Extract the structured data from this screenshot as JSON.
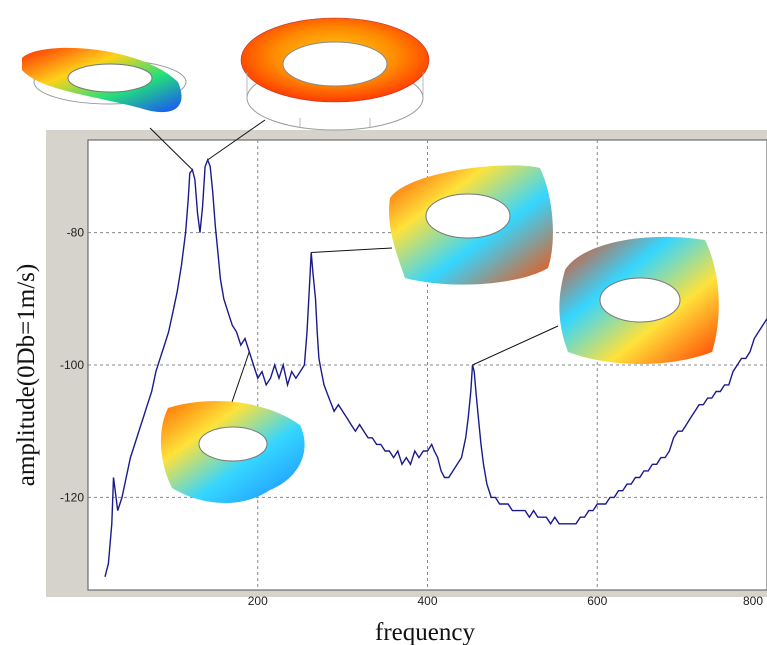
{
  "chart_data": {
    "type": "line",
    "title": "",
    "xlabel": "frequency",
    "ylabel": "amplitude(0Db=1m/s)",
    "xlim": [
      0,
      800
    ],
    "ylim": [
      -134,
      -66
    ],
    "grid": true,
    "x_ticks": [
      "200",
      "400",
      "600",
      "800"
    ],
    "y_ticks": [
      "-80",
      "-100",
      "-120"
    ],
    "x_tick_values": [
      200,
      400,
      600,
      800
    ],
    "y_tick_values": [
      -80,
      -100,
      -120
    ],
    "series": [
      {
        "name": "",
        "color": "#1a1a8c",
        "points": [
          [
            20,
            -132
          ],
          [
            24,
            -130
          ],
          [
            28,
            -124
          ],
          [
            30,
            -117
          ],
          [
            32,
            -119
          ],
          [
            35,
            -122
          ],
          [
            40,
            -120
          ],
          [
            45,
            -117
          ],
          [
            50,
            -114
          ],
          [
            55,
            -112
          ],
          [
            60,
            -110
          ],
          [
            65,
            -108
          ],
          [
            70,
            -106
          ],
          [
            75,
            -104
          ],
          [
            80,
            -101
          ],
          [
            85,
            -99
          ],
          [
            90,
            -97
          ],
          [
            95,
            -95
          ],
          [
            100,
            -92
          ],
          [
            105,
            -89
          ],
          [
            110,
            -85
          ],
          [
            115,
            -80
          ],
          [
            118,
            -75
          ],
          [
            120,
            -71
          ],
          [
            123,
            -70.5
          ],
          [
            126,
            -72
          ],
          [
            129,
            -77
          ],
          [
            132,
            -80
          ],
          [
            135,
            -76
          ],
          [
            138,
            -70
          ],
          [
            141,
            -69
          ],
          [
            144,
            -70
          ],
          [
            147,
            -74
          ],
          [
            150,
            -79
          ],
          [
            153,
            -83
          ],
          [
            156,
            -87
          ],
          [
            160,
            -90
          ],
          [
            165,
            -92
          ],
          [
            170,
            -94
          ],
          [
            175,
            -95
          ],
          [
            180,
            -97
          ],
          [
            185,
            -96
          ],
          [
            190,
            -98
          ],
          [
            195,
            -100
          ],
          [
            200,
            -102
          ],
          [
            205,
            -101
          ],
          [
            210,
            -103
          ],
          [
            215,
            -102
          ],
          [
            220,
            -100
          ],
          [
            225,
            -102
          ],
          [
            230,
            -100
          ],
          [
            235,
            -103
          ],
          [
            240,
            -101
          ],
          [
            245,
            -102
          ],
          [
            250,
            -101
          ],
          [
            255,
            -100
          ],
          [
            258,
            -95
          ],
          [
            261,
            -88
          ],
          [
            263,
            -83
          ],
          [
            265,
            -86
          ],
          [
            268,
            -90
          ],
          [
            270,
            -95
          ],
          [
            272,
            -99
          ],
          [
            275,
            -101
          ],
          [
            278,
            -103
          ],
          [
            281,
            -104
          ],
          [
            284,
            -105
          ],
          [
            287,
            -106
          ],
          [
            290,
            -107
          ],
          [
            295,
            -106
          ],
          [
            300,
            -107
          ],
          [
            305,
            -108
          ],
          [
            310,
            -109
          ],
          [
            315,
            -110
          ],
          [
            320,
            -109
          ],
          [
            325,
            -110
          ],
          [
            330,
            -111
          ],
          [
            335,
            -111
          ],
          [
            340,
            -112
          ],
          [
            345,
            -112
          ],
          [
            350,
            -113
          ],
          [
            355,
            -113
          ],
          [
            360,
            -114
          ],
          [
            365,
            -113
          ],
          [
            370,
            -115
          ],
          [
            375,
            -114
          ],
          [
            380,
            -115
          ],
          [
            385,
            -113
          ],
          [
            390,
            -114
          ],
          [
            395,
            -113
          ],
          [
            400,
            -113
          ],
          [
            405,
            -112
          ],
          [
            408,
            -113
          ],
          [
            412,
            -114
          ],
          [
            416,
            -116
          ],
          [
            420,
            -117
          ],
          [
            425,
            -117
          ],
          [
            430,
            -116
          ],
          [
            435,
            -115
          ],
          [
            440,
            -114
          ],
          [
            445,
            -111
          ],
          [
            448,
            -108
          ],
          [
            451,
            -104
          ],
          [
            453,
            -100
          ],
          [
            455,
            -101
          ],
          [
            457,
            -104
          ],
          [
            460,
            -108
          ],
          [
            463,
            -112
          ],
          [
            466,
            -115
          ],
          [
            470,
            -118
          ],
          [
            475,
            -120
          ],
          [
            480,
            -120
          ],
          [
            485,
            -121
          ],
          [
            490,
            -121
          ],
          [
            495,
            -121
          ],
          [
            500,
            -122
          ],
          [
            505,
            -122
          ],
          [
            510,
            -122
          ],
          [
            515,
            -122
          ],
          [
            520,
            -123
          ],
          [
            525,
            -122
          ],
          [
            530,
            -123
          ],
          [
            535,
            -123
          ],
          [
            540,
            -123
          ],
          [
            545,
            -124
          ],
          [
            550,
            -123
          ],
          [
            555,
            -124
          ],
          [
            560,
            -124
          ],
          [
            565,
            -124
          ],
          [
            570,
            -124
          ],
          [
            575,
            -124
          ],
          [
            580,
            -123
          ],
          [
            585,
            -123
          ],
          [
            590,
            -122
          ],
          [
            595,
            -122
          ],
          [
            600,
            -121
          ],
          [
            605,
            -121
          ],
          [
            610,
            -121
          ],
          [
            615,
            -120
          ],
          [
            620,
            -120
          ],
          [
            625,
            -119
          ],
          [
            630,
            -119
          ],
          [
            635,
            -118
          ],
          [
            640,
            -118
          ],
          [
            645,
            -117
          ],
          [
            650,
            -117
          ],
          [
            655,
            -116
          ],
          [
            660,
            -116
          ],
          [
            665,
            -115
          ],
          [
            670,
            -115
          ],
          [
            675,
            -114
          ],
          [
            680,
            -114
          ],
          [
            685,
            -113
          ],
          [
            690,
            -111
          ],
          [
            695,
            -110
          ],
          [
            700,
            -110
          ],
          [
            705,
            -109
          ],
          [
            710,
            -108
          ],
          [
            715,
            -107
          ],
          [
            720,
            -106
          ],
          [
            725,
            -106
          ],
          [
            730,
            -105
          ],
          [
            735,
            -105
          ],
          [
            740,
            -104
          ],
          [
            745,
            -104
          ],
          [
            750,
            -103
          ],
          [
            755,
            -103
          ],
          [
            760,
            -101
          ],
          [
            765,
            -100
          ],
          [
            770,
            -99
          ],
          [
            775,
            -99
          ],
          [
            780,
            -98
          ],
          [
            785,
            -96
          ],
          [
            790,
            -95
          ],
          [
            795,
            -94
          ],
          [
            800,
            -93
          ]
        ]
      }
    ],
    "annotations": [
      {
        "name": "mode-shape-1",
        "peak": [
          123,
          -70.5
        ],
        "colors": [
          "#ff2a00",
          "#ffd21a",
          "#22e07a",
          "#1a4bff"
        ]
      },
      {
        "name": "mode-shape-2",
        "peak": [
          141,
          -69
        ],
        "colors": [
          "#ff2a00",
          "#ff8a00",
          "#ffd21a"
        ]
      },
      {
        "name": "mode-shape-3",
        "peak": [
          190,
          -98
        ],
        "colors": [
          "#ff6a00",
          "#ffe23a",
          "#35d6ff",
          "#1a8aff"
        ]
      },
      {
        "name": "mode-shape-4",
        "peak": [
          263,
          -83
        ],
        "colors": [
          "#ff4a00",
          "#ffe23a",
          "#35d6ff",
          "#3aa0ff"
        ]
      },
      {
        "name": "mode-shape-5",
        "peak": [
          453,
          -100
        ],
        "colors": [
          "#ff3a00",
          "#ffe23a",
          "#35d6ff",
          "#2a6aff"
        ]
      }
    ]
  }
}
